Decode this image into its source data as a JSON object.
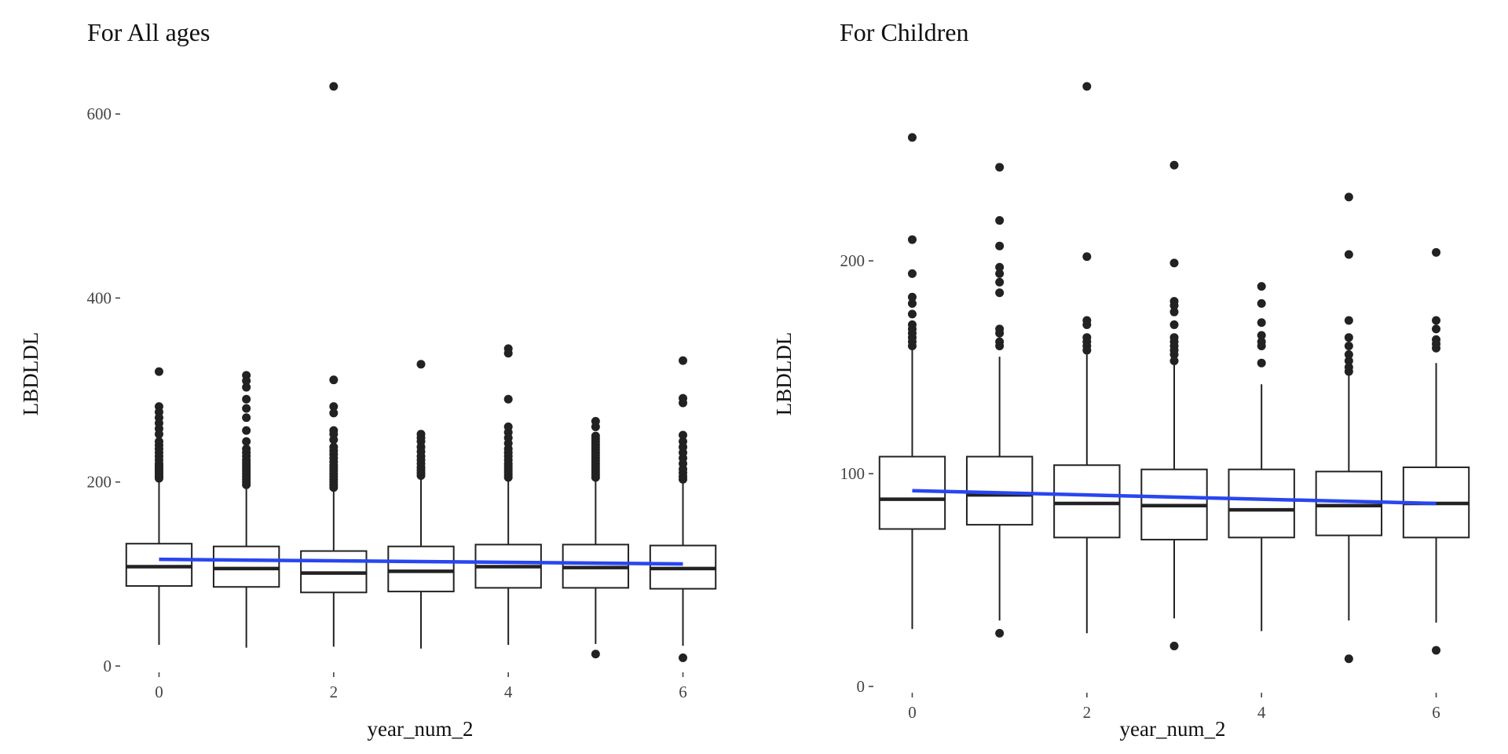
{
  "chart_data": [
    {
      "type": "boxplot",
      "title": "For All ages",
      "xlabel": "year_num_2",
      "ylabel": "LBDLDL",
      "xlim": [
        -0.4,
        6.4
      ],
      "ylim": [
        0,
        630
      ],
      "xticks": [
        0,
        2,
        4,
        6
      ],
      "xtick_labels": [
        "0",
        "2",
        "4",
        "6"
      ],
      "yticks": [
        0,
        200,
        400,
        600
      ],
      "ytick_labels": [
        "0",
        "200",
        "400",
        "600"
      ],
      "grid": false,
      "box_color": "#222222",
      "trend_color": "#2846f0",
      "boxes": [
        {
          "x": 0,
          "whisker_low": 23,
          "q1": 87,
          "median": 108,
          "q3": 133,
          "whisker_high": 201,
          "outliers": [
            204,
            206,
            208,
            210,
            212,
            214,
            216,
            218,
            220,
            224,
            228,
            232,
            236,
            240,
            244,
            252,
            258,
            264,
            270,
            276,
            282,
            320
          ]
        },
        {
          "x": 1,
          "whisker_low": 20,
          "q1": 86,
          "median": 106,
          "q3": 130,
          "whisker_high": 195,
          "outliers": [
            197,
            200,
            203,
            206,
            209,
            212,
            215,
            218,
            221,
            224,
            228,
            232,
            236,
            244,
            256,
            270,
            280,
            290,
            303,
            310,
            316
          ]
        },
        {
          "x": 2,
          "whisker_low": 21,
          "q1": 80,
          "median": 101,
          "q3": 125,
          "whisker_high": 191,
          "outliers": [
            194,
            197,
            200,
            203,
            206,
            209,
            212,
            215,
            218,
            222,
            226,
            230,
            234,
            238,
            246,
            252,
            256,
            275,
            282,
            311,
            630
          ]
        },
        {
          "x": 3,
          "whisker_low": 19,
          "q1": 81,
          "median": 103,
          "q3": 130,
          "whisker_high": 205,
          "outliers": [
            207,
            210,
            213,
            216,
            220,
            224,
            228,
            233,
            238,
            244,
            248,
            252,
            328
          ]
        },
        {
          "x": 4,
          "whisker_low": 23,
          "q1": 85,
          "median": 108,
          "q3": 132,
          "whisker_high": 203,
          "outliers": [
            205,
            208,
            211,
            214,
            217,
            220,
            224,
            228,
            232,
            236,
            242,
            248,
            254,
            260,
            290,
            340,
            345
          ]
        },
        {
          "x": 5,
          "whisker_low": 24,
          "q1": 85,
          "median": 107,
          "q3": 132,
          "whisker_high": 203,
          "outliers": [
            13,
            205,
            208,
            211,
            214,
            217,
            220,
            223,
            226,
            229,
            232,
            235,
            238,
            241,
            244,
            247,
            250,
            260,
            266
          ]
        },
        {
          "x": 6,
          "whisker_low": 22,
          "q1": 84,
          "median": 106,
          "q3": 131,
          "whisker_high": 200,
          "outliers": [
            9,
            203,
            206,
            210,
            214,
            220,
            226,
            232,
            238,
            244,
            251,
            286,
            291,
            332
          ]
        }
      ],
      "trend": {
        "x": [
          0,
          6
        ],
        "y": [
          116,
          111
        ]
      }
    },
    {
      "type": "boxplot",
      "title": "For Children",
      "xlabel": "year_num_2",
      "ylabel": "LBDLDL",
      "xlim": [
        -0.4,
        6.4
      ],
      "ylim": [
        0,
        282
      ],
      "xticks": [
        0,
        2,
        4,
        6
      ],
      "xtick_labels": [
        "0",
        "2",
        "4",
        "6"
      ],
      "yticks": [
        0,
        100,
        200
      ],
      "ytick_labels": [
        "0",
        "100",
        "200"
      ],
      "grid": false,
      "box_color": "#222222",
      "trend_color": "#2846f0",
      "boxes": [
        {
          "x": 0,
          "whisker_low": 27,
          "q1": 74,
          "median": 88,
          "q3": 108,
          "whisker_high": 158,
          "outliers": [
            160,
            162,
            164,
            166,
            168,
            170,
            175,
            180,
            183,
            194,
            210,
            258
          ]
        },
        {
          "x": 1,
          "whisker_low": 31,
          "q1": 76,
          "median": 90,
          "q3": 108,
          "whisker_high": 155,
          "outliers": [
            25,
            160,
            162,
            166,
            168,
            185,
            190,
            194,
            197,
            207,
            219,
            244
          ]
        },
        {
          "x": 2,
          "whisker_low": 25,
          "q1": 70,
          "median": 86,
          "q3": 104,
          "whisker_high": 156,
          "outliers": [
            158,
            160,
            162,
            164,
            170,
            172,
            202,
            282
          ]
        },
        {
          "x": 3,
          "whisker_low": 32,
          "q1": 69,
          "median": 85,
          "q3": 102,
          "whisker_high": 151,
          "outliers": [
            19,
            153,
            156,
            158,
            160,
            162,
            164,
            170,
            176,
            179,
            181,
            199,
            245
          ]
        },
        {
          "x": 4,
          "whisker_low": 26,
          "q1": 70,
          "median": 83,
          "q3": 102,
          "whisker_high": 142,
          "outliers": [
            152,
            160,
            162,
            165,
            171,
            180,
            188
          ]
        },
        {
          "x": 5,
          "whisker_low": 31,
          "q1": 71,
          "median": 85,
          "q3": 101,
          "whisker_high": 146,
          "outliers": [
            13,
            148,
            150,
            153,
            156,
            160,
            164,
            172,
            203,
            230
          ]
        },
        {
          "x": 6,
          "whisker_low": 30,
          "q1": 70,
          "median": 86,
          "q3": 103,
          "whisker_high": 152,
          "outliers": [
            17,
            159,
            161,
            163,
            168,
            172,
            204
          ]
        }
      ],
      "trend": {
        "x": [
          0,
          6
        ],
        "y": [
          92,
          86
        ]
      }
    }
  ]
}
